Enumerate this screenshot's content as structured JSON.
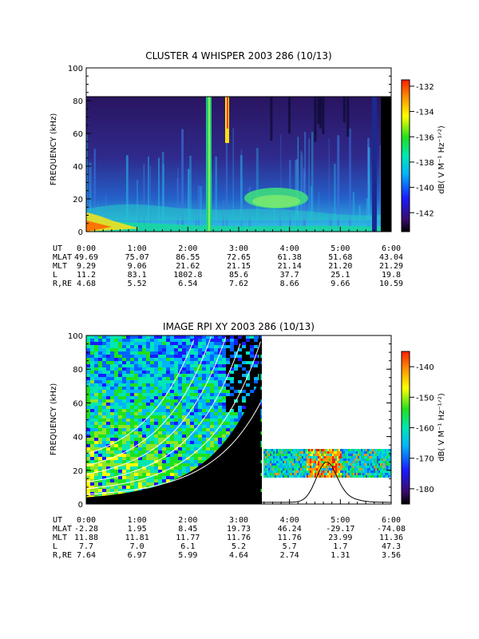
{
  "chart_data": [
    {
      "type": "heatmap",
      "title": "CLUSTER 4 WHISPER 2003 286 (10/13)",
      "ylabel": "FREQUENCY (kHz)",
      "ylim": [
        0,
        100
      ],
      "yticks": [
        "0",
        "20",
        "40",
        "60",
        "80",
        "100"
      ],
      "x_tick_labels": [
        "0:00",
        "1:00",
        "2:00",
        "3:00",
        "4:00",
        "5:00",
        "6:00"
      ],
      "colorbar": {
        "label": "dB( V M⁻¹ Hz⁻¹ᐟ²)",
        "range": [
          -143.5,
          -131.5
        ],
        "ticks": [
          "-132",
          "-134",
          "-136",
          "-138",
          "-140",
          "-142"
        ]
      },
      "ephemeris": [
        {
          "name": "UT",
          "values": [
            "0:00",
            "1:00",
            "2:00",
            "3:00",
            "4:00",
            "5:00",
            "6:00"
          ]
        },
        {
          "name": "MLAT",
          "values": [
            "49.69",
            "75.07",
            "86.55",
            "72.65",
            "61.38",
            "51.68",
            "43.04"
          ]
        },
        {
          "name": "MLT",
          "values": [
            "9.29",
            "9.06",
            "21.62",
            "21.15",
            "21.14",
            "21.20",
            "21.29"
          ]
        },
        {
          "name": "L",
          "values": [
            "11.2",
            "83.1",
            "1802.8",
            "85.6",
            "37.7",
            "25.1",
            "19.8"
          ]
        },
        {
          "name": "R,RE",
          "values": [
            "4.68",
            "5.52",
            "6.54",
            "7.62",
            "8.66",
            "9.66",
            "10.59"
          ]
        }
      ]
    },
    {
      "type": "heatmap",
      "title": "IMAGE RPI XY 2003 286 (10/13)",
      "ylabel": "FREQUENCY (kHz)",
      "ylim": [
        0,
        100
      ],
      "yticks": [
        "0",
        "20",
        "40",
        "60",
        "80",
        "100"
      ],
      "x_tick_labels": [
        "0:00",
        "1:00",
        "2:00",
        "3:00",
        "4:00",
        "5:00",
        "6:00"
      ],
      "colorbar": {
        "label": "dB( V M⁻¹ Hz⁻¹ᐟ²)",
        "range": [
          -185,
          -135
        ],
        "ticks": [
          "-140",
          "-150",
          "-160",
          "-170",
          "-180"
        ]
      },
      "ephemeris": [
        {
          "name": "UT",
          "values": [
            "0:00",
            "1:00",
            "2:00",
            "3:00",
            "4:00",
            "5:00",
            "6:00"
          ]
        },
        {
          "name": "MLAT",
          "values": [
            "-2.28",
            "1.95",
            "8.45",
            "19.73",
            "46.24",
            "-29.17",
            "-74.08"
          ]
        },
        {
          "name": "MLT",
          "values": [
            "11.88",
            "11.81",
            "11.77",
            "11.76",
            "11.76",
            "23.99",
            "11.36"
          ]
        },
        {
          "name": "L",
          "values": [
            "7.7",
            "7.0",
            "6.1",
            "5.2",
            "5.7",
            "1.7",
            "47.3"
          ]
        },
        {
          "name": "R,RE",
          "values": [
            "7.64",
            "6.97",
            "5.99",
            "4.64",
            "2.74",
            "1.31",
            "3.56"
          ]
        }
      ]
    }
  ]
}
